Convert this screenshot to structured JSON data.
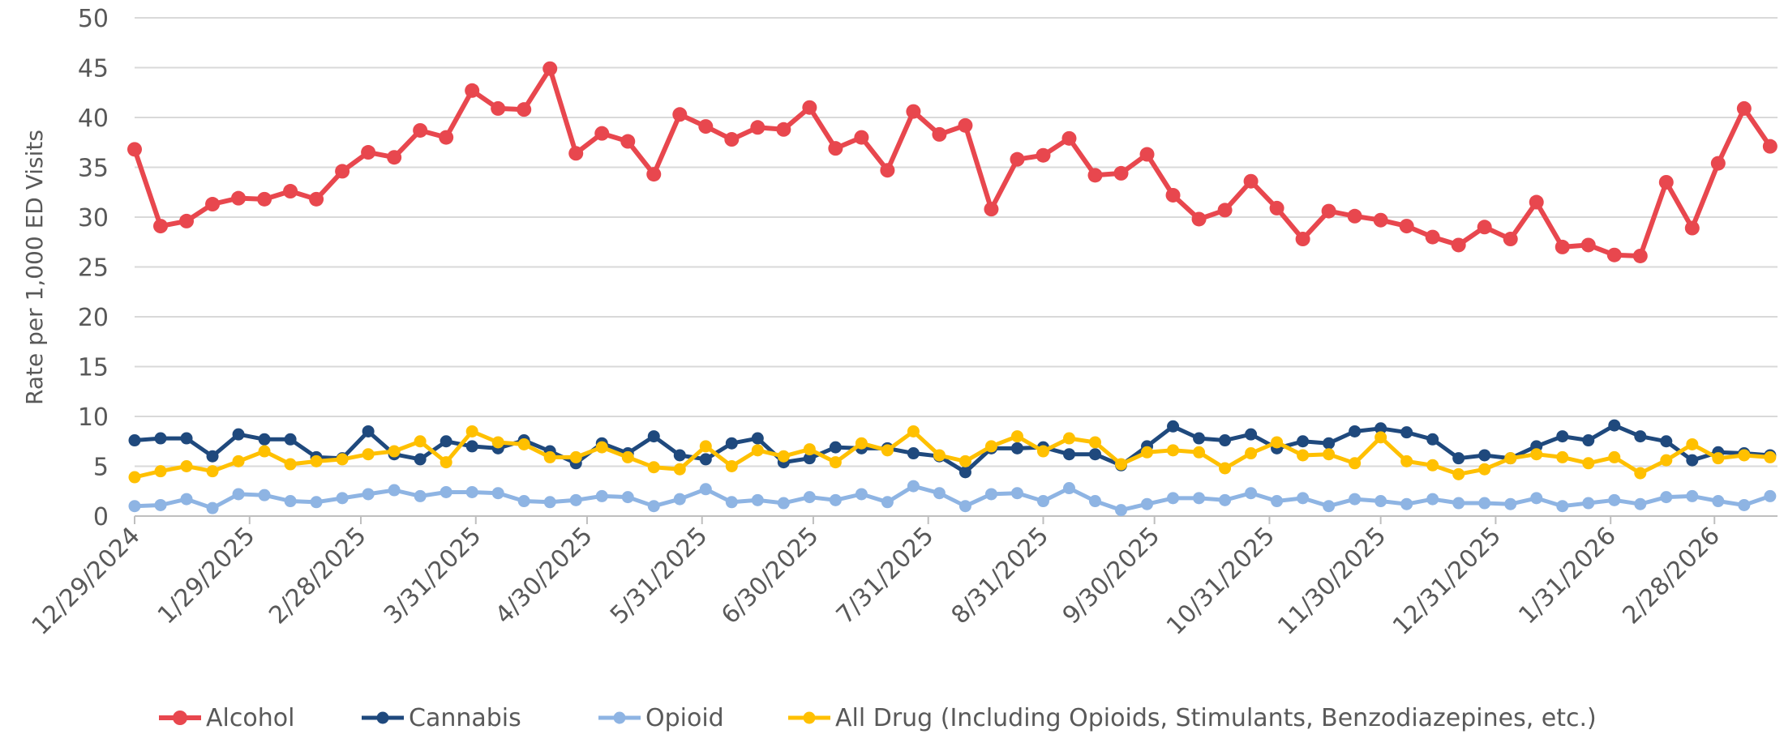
{
  "chart_data": {
    "type": "line",
    "title": "",
    "xlabel": "",
    "ylabel": "Rate per 1,000 ED Visits",
    "ylim": [
      0,
      50
    ],
    "yticks": [
      "0",
      "5",
      "10",
      "15",
      "20",
      "25",
      "30",
      "35",
      "40",
      "45",
      "50"
    ],
    "x_tick_labels": [
      "12/29/2024",
      "1/29/2025",
      "2/28/2025",
      "3/31/2025",
      "4/30/2025",
      "5/31/2025",
      "6/30/2025",
      "7/31/2025",
      "8/31/2025",
      "9/30/2025",
      "10/31/2025",
      "11/30/2025",
      "12/31/2025",
      "1/31/2026",
      "2/28/2026"
    ],
    "x_start": "12/29/2024",
    "x_interval": "weekly",
    "grid": "horizontal",
    "legend_position": "bottom",
    "series": [
      {
        "name": "Alcohol",
        "color": "#E8474E",
        "values": [
          36.8,
          29.1,
          29.6,
          31.3,
          31.9,
          31.8,
          32.6,
          31.8,
          34.6,
          36.5,
          36.0,
          38.7,
          38.0,
          42.7,
          40.9,
          40.8,
          44.9,
          36.4,
          38.4,
          37.6,
          34.3,
          40.3,
          39.1,
          37.8,
          39.0,
          38.8,
          41.0,
          36.9,
          38.0,
          34.7,
          40.6,
          38.3,
          39.2,
          30.8,
          35.8,
          36.2,
          37.9,
          34.2,
          34.4,
          36.3,
          32.2,
          29.8,
          30.7,
          33.6,
          30.9,
          27.8,
          30.6,
          30.1,
          29.7,
          29.1,
          28.0,
          27.2,
          29.0,
          27.8,
          31.5,
          27.0,
          27.2,
          26.2,
          26.1,
          33.5,
          28.9,
          35.4,
          40.9,
          37.1
        ]
      },
      {
        "name": "Cannabis",
        "color": "#1F497D",
        "values": [
          7.6,
          7.8,
          7.8,
          6.0,
          8.2,
          7.7,
          7.7,
          5.9,
          5.8,
          8.5,
          6.2,
          5.7,
          7.5,
          7.0,
          6.8,
          7.6,
          6.5,
          5.3,
          7.3,
          6.3,
          8.0,
          6.1,
          5.7,
          7.3,
          7.8,
          5.4,
          5.8,
          6.9,
          6.8,
          6.8,
          6.3,
          6.0,
          4.4,
          6.8,
          6.8,
          6.9,
          6.2,
          6.2,
          5.1,
          7.0,
          9.0,
          7.8,
          7.6,
          8.2,
          6.8,
          7.5,
          7.3,
          8.5,
          8.8,
          8.4,
          7.7,
          5.8,
          6.1,
          5.8,
          7.0,
          8.0,
          7.6,
          9.1,
          8.0,
          7.5,
          5.6,
          6.4,
          6.3,
          6.1
        ]
      },
      {
        "name": "Opioid",
        "color": "#8EB4E3",
        "values": [
          1.0,
          1.1,
          1.7,
          0.8,
          2.2,
          2.1,
          1.5,
          1.4,
          1.8,
          2.2,
          2.6,
          2.0,
          2.4,
          2.4,
          2.3,
          1.5,
          1.4,
          1.6,
          2.0,
          1.9,
          1.0,
          1.7,
          2.7,
          1.4,
          1.6,
          1.3,
          1.9,
          1.6,
          2.2,
          1.4,
          3.0,
          2.3,
          1.0,
          2.2,
          2.3,
          1.5,
          2.8,
          1.5,
          0.6,
          1.2,
          1.8,
          1.8,
          1.6,
          2.3,
          1.5,
          1.8,
          1.0,
          1.7,
          1.5,
          1.2,
          1.7,
          1.3,
          1.3,
          1.2,
          1.8,
          1.0,
          1.3,
          1.6,
          1.2,
          1.9,
          2.0,
          1.5,
          1.1,
          2.0
        ]
      },
      {
        "name": "All Drug (Including Opioids, Stimulants, Benzodiazepines, etc.)",
        "color": "#FFC000",
        "values": [
          3.9,
          4.5,
          5.0,
          4.5,
          5.5,
          6.5,
          5.2,
          5.5,
          5.7,
          6.2,
          6.5,
          7.5,
          5.4,
          8.5,
          7.4,
          7.2,
          5.9,
          5.9,
          6.9,
          5.9,
          4.9,
          4.7,
          7.0,
          5.0,
          6.6,
          6.0,
          6.7,
          5.4,
          7.3,
          6.6,
          8.5,
          6.1,
          5.5,
          7.0,
          8.0,
          6.5,
          7.8,
          7.4,
          5.2,
          6.4,
          6.6,
          6.4,
          4.8,
          6.3,
          7.4,
          6.1,
          6.2,
          5.3,
          7.9,
          5.5,
          5.1,
          4.2,
          4.7,
          5.8,
          6.2,
          5.9,
          5.3,
          5.9,
          4.3,
          5.6,
          7.2,
          5.8,
          6.1,
          5.9
        ]
      }
    ]
  }
}
